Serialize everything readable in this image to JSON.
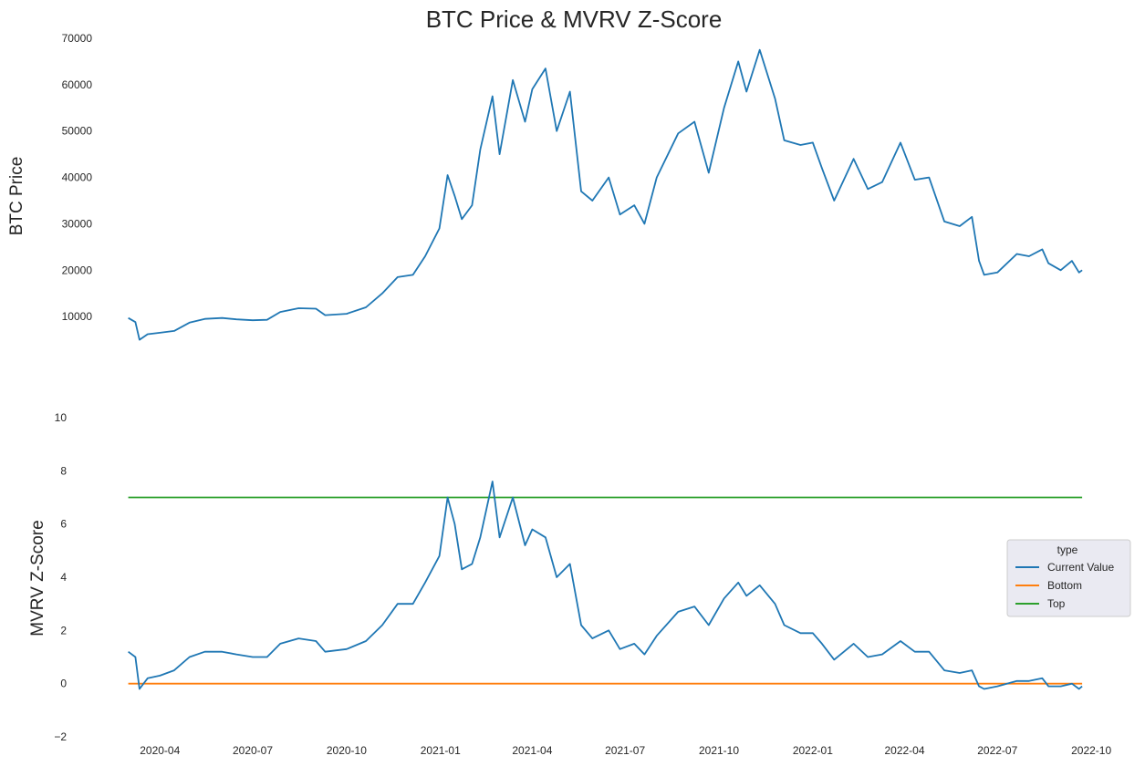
{
  "chart_data": [
    {
      "type": "line",
      "title": "BTC Price & MVRV Z-Score",
      "xlabel": "",
      "ylabel": "BTC  Price",
      "ylim": [
        0,
        70000
      ],
      "yticks": [
        10000,
        20000,
        30000,
        40000,
        50000,
        60000,
        70000
      ],
      "grid": false,
      "x_axis_shared": true,
      "series": [
        {
          "color": "#1f77b4",
          "points": [
            [
              "2020-03-01",
              9700
            ],
            [
              "2020-03-08",
              8800
            ],
            [
              "2020-03-12",
              5000
            ],
            [
              "2020-03-20",
              6200
            ],
            [
              "2020-04-01",
              6500
            ],
            [
              "2020-04-15",
              6900
            ],
            [
              "2020-04-30",
              8700
            ],
            [
              "2020-05-15",
              9500
            ],
            [
              "2020-06-01",
              9700
            ],
            [
              "2020-06-15",
              9400
            ],
            [
              "2020-07-01",
              9200
            ],
            [
              "2020-07-15",
              9300
            ],
            [
              "2020-07-28",
              11000
            ],
            [
              "2020-08-15",
              11800
            ],
            [
              "2020-09-01",
              11700
            ],
            [
              "2020-09-10",
              10300
            ],
            [
              "2020-10-01",
              10600
            ],
            [
              "2020-10-20",
              12000
            ],
            [
              "2020-11-05",
              15000
            ],
            [
              "2020-11-20",
              18500
            ],
            [
              "2020-12-05",
              19000
            ],
            [
              "2020-12-17",
              23000
            ],
            [
              "2020-12-31",
              29000
            ],
            [
              "2021-01-08",
              40500
            ],
            [
              "2021-01-15",
              36000
            ],
            [
              "2021-01-22",
              31000
            ],
            [
              "2021-02-01",
              34000
            ],
            [
              "2021-02-09",
              46000
            ],
            [
              "2021-02-21",
              57500
            ],
            [
              "2021-02-28",
              45000
            ],
            [
              "2021-03-13",
              61000
            ],
            [
              "2021-03-25",
              52000
            ],
            [
              "2021-04-01",
              59000
            ],
            [
              "2021-04-14",
              63500
            ],
            [
              "2021-04-25",
              50000
            ],
            [
              "2021-05-08",
              58500
            ],
            [
              "2021-05-19",
              37000
            ],
            [
              "2021-05-30",
              35000
            ],
            [
              "2021-06-15",
              40000
            ],
            [
              "2021-06-26",
              32000
            ],
            [
              "2021-07-10",
              34000
            ],
            [
              "2021-07-20",
              30000
            ],
            [
              "2021-08-01",
              40000
            ],
            [
              "2021-08-22",
              49500
            ],
            [
              "2021-09-07",
              52000
            ],
            [
              "2021-09-21",
              41000
            ],
            [
              "2021-10-06",
              55000
            ],
            [
              "2021-10-20",
              65000
            ],
            [
              "2021-10-28",
              58500
            ],
            [
              "2021-11-10",
              67500
            ],
            [
              "2021-11-25",
              57000
            ],
            [
              "2021-12-04",
              48000
            ],
            [
              "2021-12-20",
              47000
            ],
            [
              "2022-01-01",
              47500
            ],
            [
              "2022-01-10",
              42000
            ],
            [
              "2022-01-22",
              35000
            ],
            [
              "2022-02-10",
              44000
            ],
            [
              "2022-02-24",
              37500
            ],
            [
              "2022-03-10",
              39000
            ],
            [
              "2022-03-28",
              47500
            ],
            [
              "2022-04-11",
              39500
            ],
            [
              "2022-04-25",
              40000
            ],
            [
              "2022-05-10",
              30500
            ],
            [
              "2022-05-25",
              29500
            ],
            [
              "2022-06-06",
              31500
            ],
            [
              "2022-06-13",
              22000
            ],
            [
              "2022-06-18",
              19000
            ],
            [
              "2022-07-01",
              19500
            ],
            [
              "2022-07-20",
              23500
            ],
            [
              "2022-08-01",
              23000
            ],
            [
              "2022-08-14",
              24500
            ],
            [
              "2022-08-20",
              21500
            ],
            [
              "2022-09-01",
              20000
            ],
            [
              "2022-09-12",
              22000
            ],
            [
              "2022-09-19",
              19500
            ],
            [
              "2022-09-22",
              20000
            ]
          ]
        }
      ]
    },
    {
      "type": "line",
      "xlabel": "",
      "ylabel": "MVRV Z-Score",
      "ylim": [
        -2,
        10
      ],
      "yticks": [
        -2,
        0,
        2,
        4,
        6,
        8,
        10
      ],
      "xlim": [
        "2020-02-25",
        "2022-09-30"
      ],
      "xticks": [
        "2020-04",
        "2020-07",
        "2020-10",
        "2021-01",
        "2021-04",
        "2021-07",
        "2021-10",
        "2022-01",
        "2022-04",
        "2022-07",
        "2022-10"
      ],
      "grid": false,
      "legend": {
        "title": "type",
        "placement": "right"
      },
      "series": [
        {
          "name": "Current Value",
          "color": "#1f77b4",
          "points": [
            [
              "2020-03-01",
              1.2
            ],
            [
              "2020-03-08",
              1.0
            ],
            [
              "2020-03-12",
              -0.2
            ],
            [
              "2020-03-20",
              0.2
            ],
            [
              "2020-04-01",
              0.3
            ],
            [
              "2020-04-15",
              0.5
            ],
            [
              "2020-04-30",
              1.0
            ],
            [
              "2020-05-15",
              1.2
            ],
            [
              "2020-06-01",
              1.2
            ],
            [
              "2020-06-15",
              1.1
            ],
            [
              "2020-07-01",
              1.0
            ],
            [
              "2020-07-15",
              1.0
            ],
            [
              "2020-07-28",
              1.5
            ],
            [
              "2020-08-15",
              1.7
            ],
            [
              "2020-09-01",
              1.6
            ],
            [
              "2020-09-10",
              1.2
            ],
            [
              "2020-10-01",
              1.3
            ],
            [
              "2020-10-20",
              1.6
            ],
            [
              "2020-11-05",
              2.2
            ],
            [
              "2020-11-20",
              3.0
            ],
            [
              "2020-12-05",
              3.0
            ],
            [
              "2020-12-17",
              3.8
            ],
            [
              "2020-12-31",
              4.8
            ],
            [
              "2021-01-08",
              7.0
            ],
            [
              "2021-01-15",
              6.0
            ],
            [
              "2021-01-22",
              4.3
            ],
            [
              "2021-02-01",
              4.5
            ],
            [
              "2021-02-09",
              5.5
            ],
            [
              "2021-02-21",
              7.6
            ],
            [
              "2021-02-28",
              5.5
            ],
            [
              "2021-03-13",
              7.0
            ],
            [
              "2021-03-25",
              5.2
            ],
            [
              "2021-04-01",
              5.8
            ],
            [
              "2021-04-14",
              5.5
            ],
            [
              "2021-04-25",
              4.0
            ],
            [
              "2021-05-08",
              4.5
            ],
            [
              "2021-05-19",
              2.2
            ],
            [
              "2021-05-30",
              1.7
            ],
            [
              "2021-06-15",
              2.0
            ],
            [
              "2021-06-26",
              1.3
            ],
            [
              "2021-07-10",
              1.5
            ],
            [
              "2021-07-20",
              1.1
            ],
            [
              "2021-08-01",
              1.8
            ],
            [
              "2021-08-22",
              2.7
            ],
            [
              "2021-09-07",
              2.9
            ],
            [
              "2021-09-21",
              2.2
            ],
            [
              "2021-10-06",
              3.2
            ],
            [
              "2021-10-20",
              3.8
            ],
            [
              "2021-10-28",
              3.3
            ],
            [
              "2021-11-10",
              3.7
            ],
            [
              "2021-11-25",
              3.0
            ],
            [
              "2021-12-04",
              2.2
            ],
            [
              "2021-12-20",
              1.9
            ],
            [
              "2022-01-01",
              1.9
            ],
            [
              "2022-01-10",
              1.5
            ],
            [
              "2022-01-22",
              0.9
            ],
            [
              "2022-02-10",
              1.5
            ],
            [
              "2022-02-24",
              1.0
            ],
            [
              "2022-03-10",
              1.1
            ],
            [
              "2022-03-28",
              1.6
            ],
            [
              "2022-04-11",
              1.2
            ],
            [
              "2022-04-25",
              1.2
            ],
            [
              "2022-05-10",
              0.5
            ],
            [
              "2022-05-25",
              0.4
            ],
            [
              "2022-06-06",
              0.5
            ],
            [
              "2022-06-13",
              -0.1
            ],
            [
              "2022-06-18",
              -0.2
            ],
            [
              "2022-07-01",
              -0.1
            ],
            [
              "2022-07-20",
              0.1
            ],
            [
              "2022-08-01",
              0.1
            ],
            [
              "2022-08-14",
              0.2
            ],
            [
              "2022-08-20",
              -0.1
            ],
            [
              "2022-09-01",
              -0.1
            ],
            [
              "2022-09-12",
              0.0
            ],
            [
              "2022-09-19",
              -0.2
            ],
            [
              "2022-09-22",
              -0.1
            ]
          ]
        },
        {
          "name": "Bottom",
          "color": "#ff7f0e",
          "points": [
            [
              "2020-03-01",
              0
            ],
            [
              "2022-09-22",
              0
            ]
          ]
        },
        {
          "name": "Top",
          "color": "#2ca02c",
          "points": [
            [
              "2020-03-01",
              7
            ],
            [
              "2022-09-22",
              7
            ]
          ]
        }
      ]
    }
  ]
}
